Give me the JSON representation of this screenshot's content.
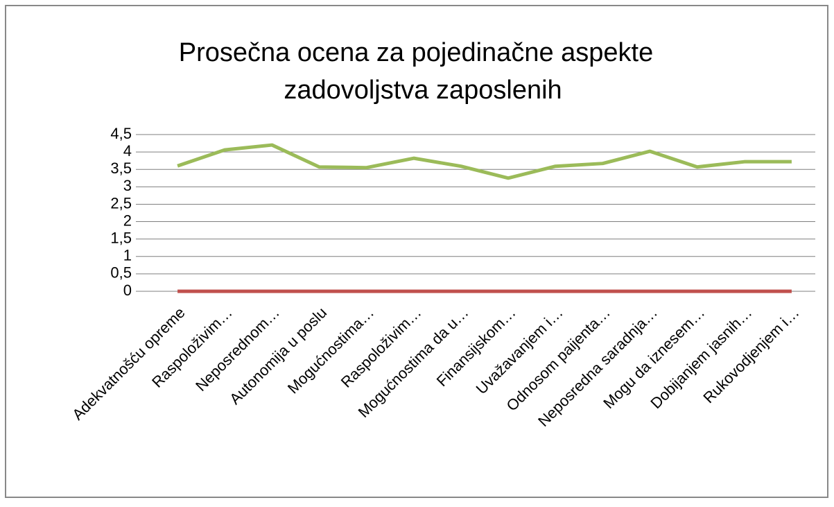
{
  "chart_data": {
    "type": "line",
    "title": [
      "Prosečna ocena za pojedinačne aspekte",
      "zadovoljstva zaposlenih"
    ],
    "categories": [
      "Adekvatnošću opreme",
      "Raspoloživim…",
      "Neposrednom…",
      "Autonomija u poslu",
      "Mogućnostima…",
      "Raspoloživim…",
      "Mogućnostima  da u…",
      "Finansijskom…",
      "Uvažavanjem i…",
      "Odnosom paijenta…",
      "Neposredna saradnja…",
      "Mogu da iznesem…",
      "Dobijanjem jasnih…",
      "Rukovodjenjem i…"
    ],
    "series": [
      {
        "color": "#9bbb59",
        "values": [
          3.6,
          4.06,
          4.2,
          3.57,
          3.55,
          3.82,
          3.59,
          3.25,
          3.59,
          3.67,
          4.02,
          3.57,
          3.72,
          3.72
        ]
      },
      {
        "color": "#c0504d",
        "values": [
          0,
          0,
          0,
          0,
          0,
          0,
          0,
          0,
          0,
          0,
          0,
          0,
          0,
          0
        ]
      }
    ],
    "ylim": [
      0,
      4.5
    ],
    "yticks": [
      0,
      {
        "value": 0.5,
        "label": "0,5"
      },
      1,
      {
        "value": 1.5,
        "label": "1,5"
      },
      2,
      {
        "value": 2.5,
        "label": "2,5"
      },
      3,
      {
        "value": 3.5,
        "label": "3,5"
      },
      4,
      {
        "value": 4.5,
        "label": "4,5"
      }
    ],
    "grid": true
  }
}
